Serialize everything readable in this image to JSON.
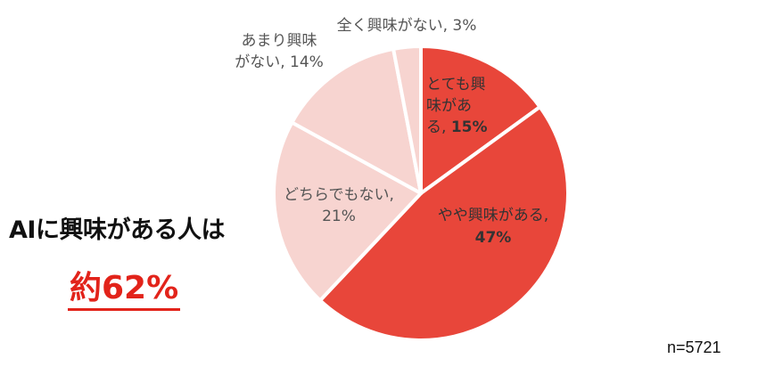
{
  "headline": {
    "title": "AIに興味がある人は",
    "highlight": "約62%"
  },
  "sample_size": "n=5721",
  "chart_data": {
    "type": "pie",
    "start": "12 o'clock, clockwise",
    "slices": [
      {
        "label_lines": [
          "とても興",
          "味があ",
          "る, 15%"
        ],
        "value": 15,
        "color": "#e8463a",
        "label_color": "#333333",
        "bold_suffix": "15%"
      },
      {
        "label_lines": [
          "やや興味がある,",
          "47%"
        ],
        "value": 47,
        "color": "#e8463a",
        "label_color": "#333333",
        "bold_suffix": "47%"
      },
      {
        "label_lines": [
          "どちらでもない,",
          "21%"
        ],
        "value": 21,
        "color": "#f7d4d0",
        "label_color": "#555555",
        "bold_suffix": ""
      },
      {
        "label_lines": [
          "あまり興味",
          "がない, 14%"
        ],
        "value": 14,
        "color": "#f7d4d0",
        "label_color": "#555555",
        "bold_suffix": ""
      },
      {
        "label_lines": [
          "全く興味がない, 3%"
        ],
        "value": 3,
        "color": "#f7d4d0",
        "label_color": "#555555",
        "bold_suffix": ""
      }
    ]
  }
}
